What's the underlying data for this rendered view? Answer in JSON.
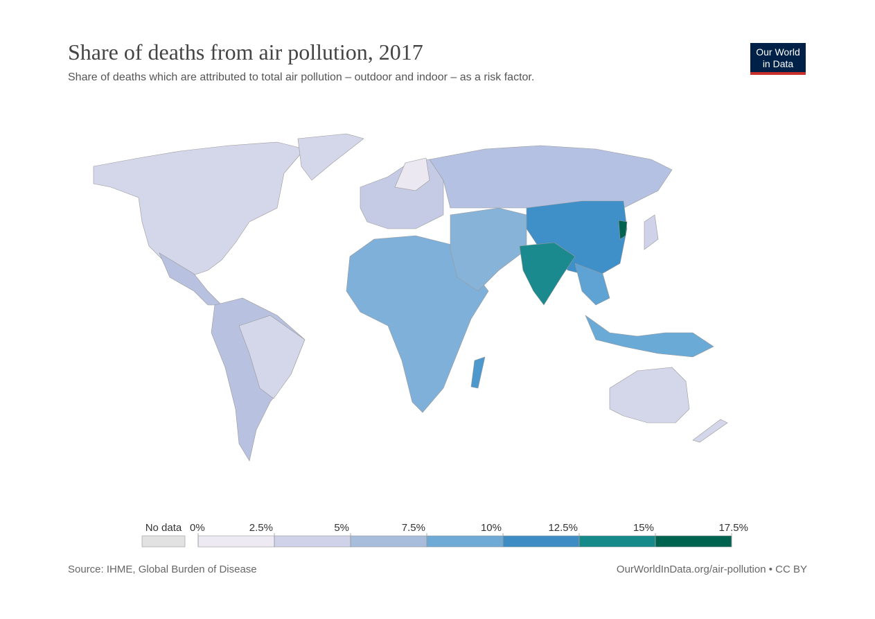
{
  "header": {
    "title": "Share of deaths from air pollution, 2017",
    "subtitle": "Share of deaths which are attributed to total air pollution – outdoor and indoor – as a risk factor.",
    "logo": [
      "Our World",
      "in Data"
    ]
  },
  "legend": {
    "no_data_label": "No data",
    "no_data_color": "#e2e2e2",
    "ticks": [
      {
        "value": 0,
        "label": "0%"
      },
      {
        "value": 2.5,
        "label": "2.5%"
      },
      {
        "value": 5,
        "label": "5%"
      },
      {
        "value": 7.5,
        "label": "7.5%"
      },
      {
        "value": 10,
        "label": "10%"
      },
      {
        "value": 12.5,
        "label": "12.5%"
      },
      {
        "value": 15,
        "label": "15%"
      },
      {
        "value": 17.5,
        "label": "17.5%"
      }
    ],
    "colors": [
      "#eeeaf4",
      "#cfd2e8",
      "#a8bcdc",
      "#6faad6",
      "#3d8cc4",
      "#168a8a",
      "#00634f"
    ]
  },
  "footer": {
    "source": "Source: IHME, Global Burden of Disease",
    "url": "OurWorldInData.org/air-pollution • CC BY"
  }
}
